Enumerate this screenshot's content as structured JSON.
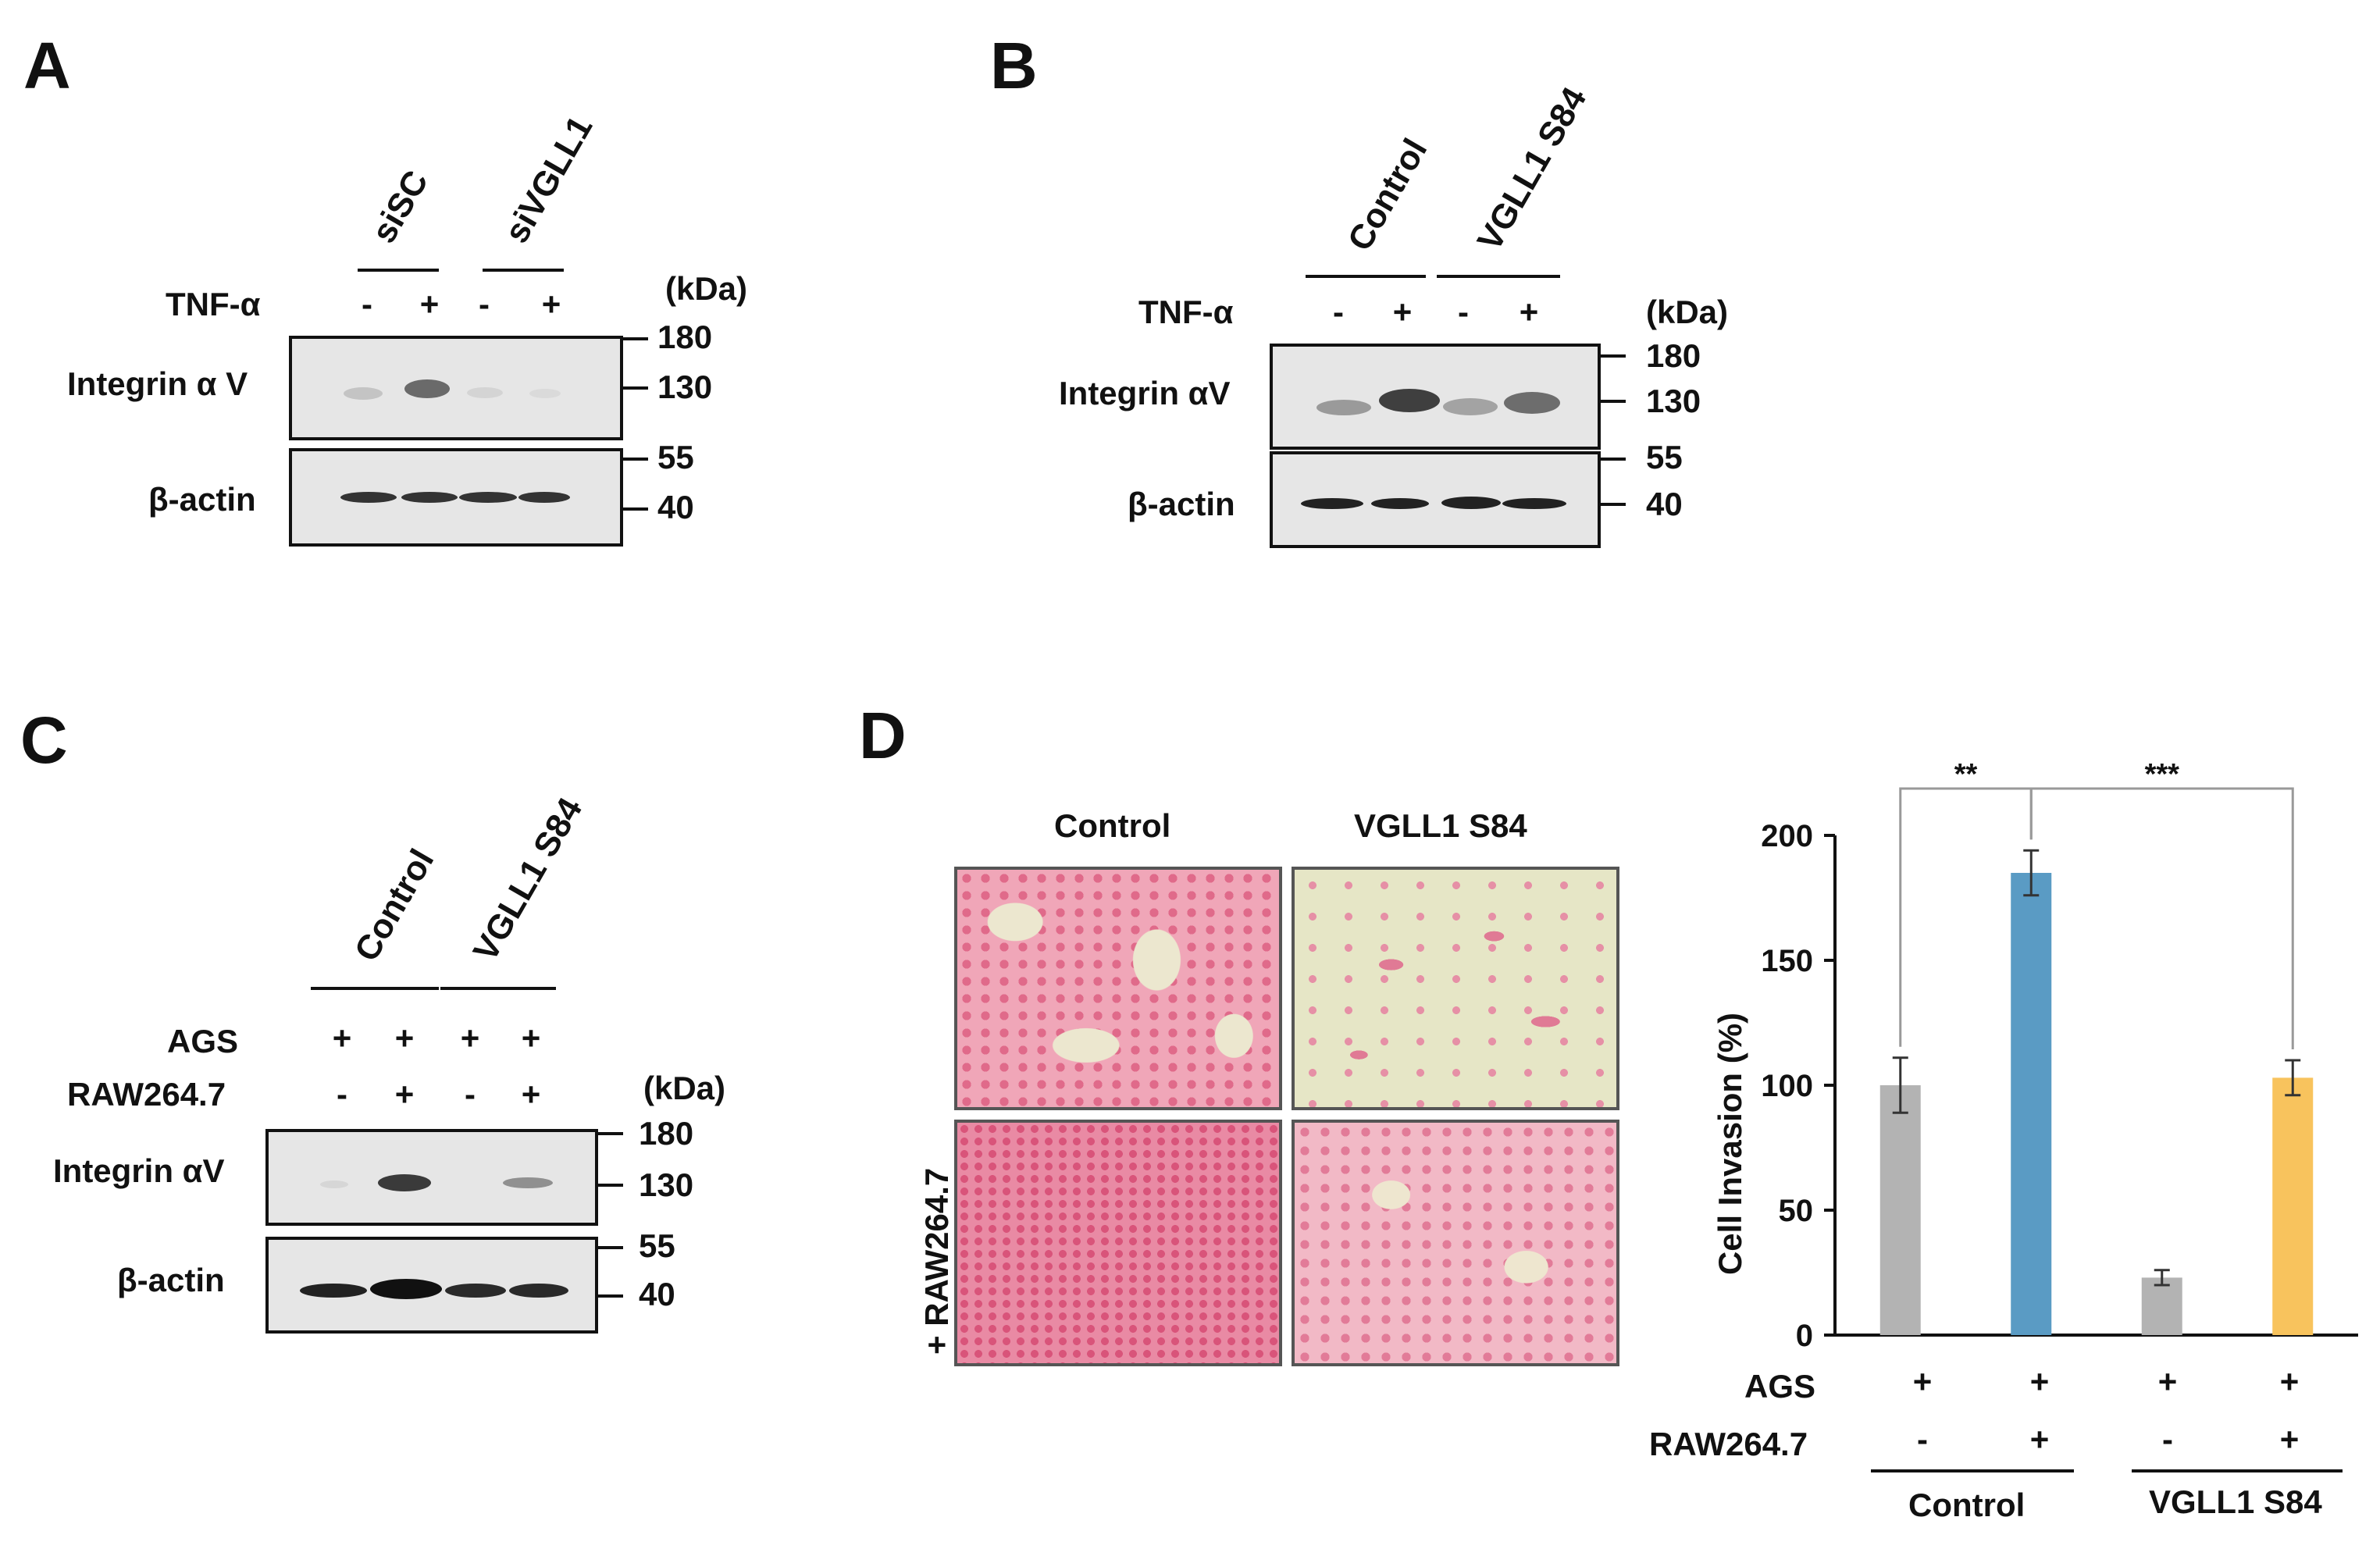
{
  "panels": {
    "A": {
      "letter": "A",
      "groups": [
        "siSC",
        "siVGLL1"
      ],
      "treatment_label": "TNF-α",
      "treatment_signs": [
        "-",
        "+",
        "-",
        "+"
      ],
      "kda_label": "(kDa)",
      "blots": [
        {
          "label": "Integrin α V",
          "markers": [
            "180",
            "130"
          ]
        },
        {
          "label": "β-actin",
          "markers": [
            "55",
            "40"
          ]
        }
      ]
    },
    "B": {
      "letter": "B",
      "groups": [
        "Control",
        "VGLL1 S84"
      ],
      "treatment_label": "TNF-α",
      "treatment_signs": [
        "-",
        "+",
        "-",
        "+"
      ],
      "kda_label": "(kDa)",
      "blots": [
        {
          "label": "Integrin αV",
          "markers": [
            "180",
            "130"
          ]
        },
        {
          "label": "β-actin",
          "markers": [
            "55",
            "40"
          ]
        }
      ]
    },
    "C": {
      "letter": "C",
      "groups": [
        "Control",
        "VGLL1 S84"
      ],
      "rows": [
        {
          "label": "AGS",
          "signs": [
            "+",
            "+",
            "+",
            "+"
          ]
        },
        {
          "label": "RAW264.7",
          "signs": [
            "-",
            "+",
            "-",
            "+"
          ]
        }
      ],
      "kda_label": "(kDa)",
      "blots": [
        {
          "label": "Integrin αV",
          "markers": [
            "180",
            "130"
          ]
        },
        {
          "label": "β-actin",
          "markers": [
            "55",
            "40"
          ]
        }
      ]
    },
    "D": {
      "letter": "D",
      "image_columns": [
        "Control",
        "VGLL1 S84"
      ],
      "image_row_label": "+ RAW264.7",
      "table_rows": [
        {
          "label": "AGS",
          "signs": [
            "+",
            "+",
            "+",
            "+"
          ]
        },
        {
          "label": "RAW264.7",
          "signs": [
            "-",
            "+",
            "-",
            "+"
          ]
        }
      ],
      "groups": [
        "Control",
        "VGLL1 S84"
      ]
    }
  },
  "colors": {
    "bar_gray": "#b3b3b3",
    "bar_blue": "#5a9bc4",
    "bar_orange": "#f8c35d",
    "stain_pink": "#e8869e",
    "bg_cream": "#ece7cf"
  },
  "chart_data": {
    "type": "bar",
    "categories": [
      "AGS",
      "AGS + RAW264.7",
      "VGLL1 S84 AGS",
      "VGLL1 S84 AGS + RAW264.7"
    ],
    "values": [
      100,
      185,
      23,
      103
    ],
    "errors": [
      11,
      9,
      3,
      7
    ],
    "bar_colors": [
      "#b3b3b3",
      "#5a9bc4",
      "#b3b3b3",
      "#f8c35d"
    ],
    "ylabel": "Cell Invasion (%)",
    "ylim": [
      0,
      200
    ],
    "yticks": [
      "0",
      "50",
      "100",
      "150",
      "200"
    ],
    "significance": [
      {
        "from": 0,
        "to": 1,
        "label": "**"
      },
      {
        "from": 1,
        "to": 3,
        "label": "***"
      }
    ]
  }
}
